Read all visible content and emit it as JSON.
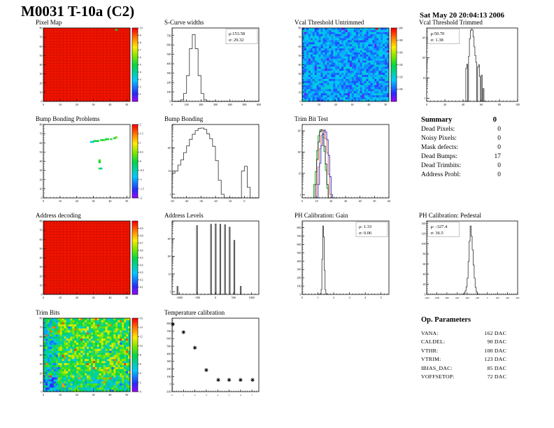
{
  "page": {
    "title": "M0031 T-10a (C2)",
    "datetime": "Sat May 20 20:04:13 2006"
  },
  "summary": {
    "heading": "Summary",
    "grade": "0",
    "rows": [
      {
        "label": "Dead Pixels:",
        "value": "0"
      },
      {
        "label": "Noisy Pixels:",
        "value": "0"
      },
      {
        "label": "Mask defects:",
        "value": "0"
      },
      {
        "label": "Dead Bumps:",
        "value": "17"
      },
      {
        "label": "Dead Trimbits:",
        "value": "0"
      },
      {
        "label": "Address Probl:",
        "value": "0"
      }
    ]
  },
  "op_parameters": {
    "heading": "Op. Parameters",
    "rows": [
      {
        "label": "VANA:",
        "value": "162 DAC"
      },
      {
        "label": "CALDEL:",
        "value": "90 DAC"
      },
      {
        "label": "VTHR:",
        "value": "100 DAC"
      },
      {
        "label": "VTRIM:",
        "value": "123 DAC"
      },
      {
        "label": "IBIAS_DAC:",
        "value": "85 DAC"
      },
      {
        "label": "VOFFSETOP:",
        "value": "72 DAC"
      }
    ]
  },
  "colors": {
    "accent_red": "#f21300",
    "palette": "root-rainbow"
  },
  "chart_data": [
    {
      "id": "pixel_map",
      "type": "heatmap",
      "title": "Pixel Map",
      "style": "solid-red",
      "x_range": [
        0,
        52
      ],
      "y_range": [
        0,
        80
      ],
      "xticks": [
        0,
        10,
        20,
        30,
        40,
        50
      ],
      "yticks": [
        0,
        10,
        20,
        30,
        40,
        50,
        60,
        70,
        80
      ],
      "zmin": 0,
      "zmax": 10,
      "colorbar_ticks": [
        1,
        2,
        3,
        4,
        5,
        6,
        7,
        8,
        9,
        10
      ],
      "anomalies": [
        {
          "col": 43,
          "row": 77,
          "value": 5
        }
      ]
    },
    {
      "id": "scurve_widths",
      "type": "histogram",
      "title": "S-Curve widths",
      "stats_lines": [
        "μ:153.58",
        "σ: 29.32"
      ],
      "stats_pos": "tr",
      "x_range": [
        0,
        600
      ],
      "xticks": [
        0,
        100,
        200,
        300,
        400,
        500,
        600
      ],
      "yscale": "linear",
      "y_range": [
        0,
        780
      ],
      "yticks": [
        0,
        100,
        200,
        300,
        400,
        500,
        600,
        700
      ],
      "bins_start": 0,
      "bin_width": 20,
      "counts": [
        0,
        0,
        2,
        16,
        84,
        274,
        560,
        710,
        560,
        274,
        84,
        16,
        2,
        0,
        0,
        0,
        0,
        0,
        0,
        0,
        0,
        0,
        0,
        0,
        0,
        0,
        0,
        0,
        0,
        0
      ]
    },
    {
      "id": "vcal_untrimmed",
      "type": "heatmap",
      "title": "Vcal Threshold Untrimmed",
      "style": "noise-blue",
      "x_range": [
        0,
        52
      ],
      "y_range": [
        0,
        80
      ],
      "xticks": [
        0,
        10,
        20,
        30,
        40,
        50
      ],
      "yticks": [
        0,
        10,
        20,
        30,
        40,
        50,
        60,
        70,
        80
      ],
      "zmin": 80,
      "zmax": 200,
      "colorbar_ticks": [
        100,
        120,
        140,
        160,
        180,
        200
      ],
      "anomalies": [
        {
          "col": 44,
          "row": 78,
          "value": 198
        }
      ]
    },
    {
      "id": "vcal_trimmed",
      "type": "histogram",
      "title": "Vcal Threshold Trimmed",
      "stats_lines": [
        "μ:50.70",
        "σ: 1.38"
      ],
      "stats_pos": "tl",
      "x_range": [
        0,
        100
      ],
      "xticks": [
        0,
        20,
        40,
        60,
        80,
        100
      ],
      "yscale": "log",
      "y_range": [
        0.7,
        3000
      ],
      "log_labels": [
        [
          1,
          "1"
        ],
        [
          10,
          "10"
        ],
        [
          100,
          "10²"
        ],
        [
          1000,
          "10³"
        ]
      ],
      "bins_start": 40,
      "bin_width": 1,
      "counts": [
        0,
        0,
        0,
        30,
        48,
        0,
        120,
        900,
        2300,
        2600,
        2400,
        1100,
        350,
        130,
        60,
        0,
        35,
        45,
        12,
        0,
        14,
        0,
        3,
        0,
        0,
        0
      ]
    },
    {
      "id": "bump_problems",
      "type": "heatmap",
      "title": "Bump Bonding Problems",
      "style": "defects",
      "x_range": [
        0,
        52
      ],
      "y_range": [
        0,
        80
      ],
      "xticks": [
        0,
        10,
        20,
        30,
        40,
        50
      ],
      "yticks": [
        0,
        10,
        20,
        30,
        40,
        50,
        60,
        70,
        80
      ],
      "zmin": -2,
      "zmax": 2,
      "colorbar_ticks": [
        -2,
        -1.5,
        -1,
        -0.5,
        0,
        0.5,
        1,
        1.5,
        2
      ],
      "defects": [
        {
          "col": 28,
          "row": 60,
          "value": -0.8
        },
        {
          "col": 29,
          "row": 60,
          "value": -0.5
        },
        {
          "col": 30,
          "row": 61,
          "value": 0
        },
        {
          "col": 31,
          "row": 61,
          "value": 0.1
        },
        {
          "col": 32,
          "row": 61,
          "value": 0
        },
        {
          "col": 34,
          "row": 62,
          "value": 0.2
        },
        {
          "col": 35,
          "row": 62,
          "value": 0
        },
        {
          "col": 36,
          "row": 62,
          "value": 0.3
        },
        {
          "col": 37,
          "row": 63,
          "value": 0
        },
        {
          "col": 38,
          "row": 63,
          "value": 0.1
        },
        {
          "col": 40,
          "row": 63,
          "value": 0.2
        },
        {
          "col": 42,
          "row": 64,
          "value": 0
        },
        {
          "col": 43,
          "row": 65,
          "value": 0.4
        },
        {
          "col": 33,
          "row": 40,
          "value": 0.3
        },
        {
          "col": 33,
          "row": 38,
          "value": 0
        },
        {
          "col": 33,
          "row": 31,
          "value": 0.2
        },
        {
          "col": 34,
          "row": 31,
          "value": -0.5
        }
      ]
    },
    {
      "id": "bump_bonding",
      "type": "histogram",
      "title": "Bump Bonding",
      "x_range": [
        -50,
        10
      ],
      "xticks": [
        -50,
        -40,
        -30,
        -20,
        -10,
        0
      ],
      "yscale": "log",
      "y_range": [
        0.7,
        1000
      ],
      "log_labels": [
        [
          1,
          "1"
        ],
        [
          10,
          "10"
        ],
        [
          100,
          "10²"
        ]
      ],
      "bins_start": -50,
      "bin_width": 2,
      "counts": [
        8,
        10,
        18,
        30,
        62,
        120,
        230,
        380,
        550,
        680,
        705,
        620,
        400,
        245,
        115,
        28,
        4,
        1,
        0,
        0,
        0,
        0,
        0,
        0,
        10,
        16,
        2,
        0,
        0,
        0
      ]
    },
    {
      "id": "trim_bit_test",
      "type": "multi-histogram",
      "title": "Trim Bit Test",
      "x_range": [
        0,
        60
      ],
      "xticks": [
        0,
        10,
        20,
        30,
        40,
        50,
        60
      ],
      "yscale": "log",
      "y_range": [
        0.7,
        2000
      ],
      "log_labels": [
        [
          1,
          "1"
        ],
        [
          10,
          "10"
        ],
        [
          100,
          "10²"
        ],
        [
          1000,
          "10³"
        ]
      ],
      "bins_start": 8,
      "bin_width": 1,
      "series": [
        {
          "name": "trim-bit-green",
          "color": "#00aa00",
          "counts": [
            3,
            12,
            120,
            600,
            1100,
            1000,
            480,
            110,
            14,
            2,
            0,
            0,
            0,
            0,
            0,
            0
          ]
        },
        {
          "name": "trim-bit-black",
          "color": "#222222",
          "counts": [
            0,
            3,
            45,
            300,
            900,
            1150,
            680,
            190,
            28,
            3,
            0,
            0,
            0,
            0,
            0,
            0
          ]
        },
        {
          "name": "trim-bit-red",
          "color": "#ee5555",
          "counts": [
            0,
            0,
            3,
            20,
            150,
            600,
            1050,
            980,
            430,
            90,
            9,
            1,
            0,
            0,
            0,
            0
          ]
        },
        {
          "name": "trim-bit-blue",
          "color": "#2233bb",
          "counts": [
            0,
            0,
            0,
            3,
            30,
            200,
            720,
            1100,
            880,
            380,
            70,
            7,
            1,
            0,
            0,
            0
          ]
        }
      ]
    },
    {
      "id": "address_decoding",
      "type": "heatmap",
      "title": "Address decoding",
      "style": "solid-red",
      "x_range": [
        0,
        52
      ],
      "y_range": [
        0,
        80
      ],
      "xticks": [
        0,
        10,
        20,
        30,
        40,
        50
      ],
      "yticks": [
        0,
        10,
        20,
        30,
        40,
        50,
        60,
        70,
        80
      ],
      "zmin": 0,
      "zmax": 1,
      "colorbar_ticks": [
        0.1,
        0.2,
        0.3,
        0.4,
        0.5,
        0.6,
        0.7,
        0.8,
        0.9
      ],
      "anomalies": []
    },
    {
      "id": "address_levels",
      "type": "spikes",
      "title": "Address Levels",
      "x_range": [
        -1200,
        1200
      ],
      "xticks": [
        -1000,
        -500,
        0,
        500,
        1000
      ],
      "yscale": "log",
      "y_range": [
        0.7,
        10000
      ],
      "log_labels": [
        [
          1,
          "1"
        ],
        [
          10,
          "10"
        ],
        [
          100,
          "10²"
        ],
        [
          1000,
          "10³"
        ]
      ],
      "spike_width": 30,
      "spikes": [
        [
          -1050,
          2
        ],
        [
          -510,
          5500
        ],
        [
          -122,
          6500
        ],
        [
          6,
          6800
        ],
        [
          135,
          6500
        ],
        [
          265,
          6200
        ],
        [
          393,
          4500
        ],
        [
          523,
          800
        ],
        [
          700,
          2
        ]
      ]
    },
    {
      "id": "ph_gain",
      "type": "histogram",
      "title": "PH Calibration: Gain",
      "stats_lines": [
        "μ: 1.33",
        "σ: 0.06"
      ],
      "stats_pos": "tr",
      "x_range": [
        0,
        5.5
      ],
      "xticks": [
        0,
        1,
        2,
        3,
        4,
        5
      ],
      "yscale": "linear",
      "y_range": [
        0,
        880
      ],
      "yticks": [
        0,
        100,
        200,
        300,
        400,
        500,
        600,
        700,
        800
      ],
      "bins_start": 1.0,
      "bin_width": 0.05,
      "counts": [
        0,
        0,
        2,
        10,
        60,
        420,
        820,
        690,
        290,
        55,
        10,
        3,
        1,
        0
      ]
    },
    {
      "id": "ph_pedestal",
      "type": "histogram",
      "title": "PH Calibration: Pedestal",
      "stats_lines": [
        "μ: -327.4",
        "σ: 36.5"
      ],
      "stats_pos": "tl",
      "x_range": [
        -1200,
        600
      ],
      "xticks": [
        -1200,
        -1000,
        -800,
        -600,
        -400,
        -200,
        0,
        200,
        400,
        600
      ],
      "yscale": "linear",
      "y_range": [
        0,
        145
      ],
      "yticks": [
        0,
        20,
        40,
        60,
        80,
        100,
        120,
        140
      ],
      "bins_start": -480,
      "bin_width": 20,
      "counts": [
        1,
        3,
        7,
        15,
        32,
        65,
        105,
        135,
        115,
        88,
        58,
        32,
        14,
        5,
        1
      ]
    },
    {
      "id": "trim_bits",
      "type": "heatmap",
      "title": "Trim Bits",
      "style": "noise-green",
      "x_range": [
        0,
        52
      ],
      "y_range": [
        0,
        80
      ],
      "xticks": [
        0,
        10,
        20,
        30,
        40,
        50
      ],
      "yticks": [
        0,
        10,
        20,
        30,
        40,
        50,
        60,
        70,
        80
      ],
      "zmin": 0,
      "zmax": 16,
      "colorbar_ticks": [
        0,
        2,
        4,
        6,
        8,
        10,
        12,
        14,
        16
      ]
    },
    {
      "id": "temp_cal",
      "type": "scatter",
      "title": "Temperature calibration",
      "marker": "star",
      "x_range": [
        0,
        7.6
      ],
      "xticks": [
        0,
        1,
        2,
        3,
        4,
        5,
        6,
        7
      ],
      "y_range": [
        -100,
        870
      ],
      "yticks": [
        -100,
        0,
        100,
        200,
        300,
        400,
        500,
        600,
        700,
        800
      ],
      "points": [
        [
          0.07,
          790
        ],
        [
          1,
          685
        ],
        [
          2,
          480
        ],
        [
          3,
          185
        ],
        [
          4.05,
          55
        ],
        [
          5,
          55
        ],
        [
          6,
          55
        ],
        [
          7.05,
          55
        ]
      ]
    }
  ]
}
